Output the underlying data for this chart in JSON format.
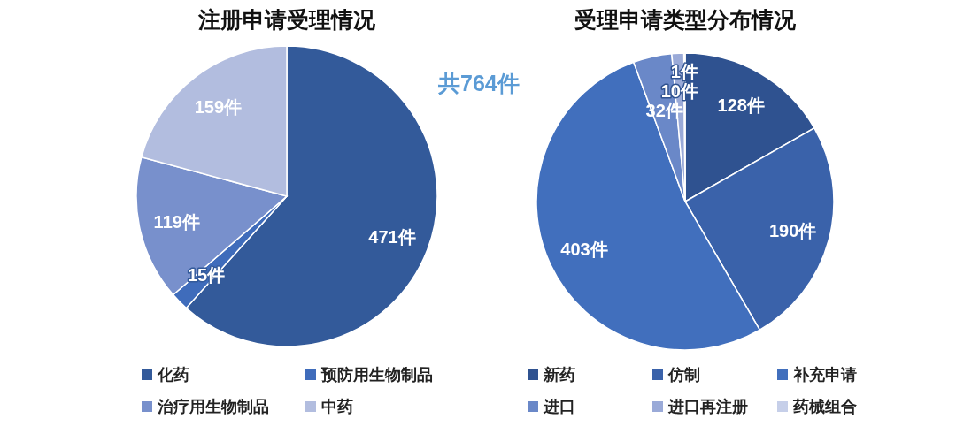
{
  "chart_data": [
    {
      "type": "pie",
      "title": "注册申请受理情况",
      "categories": [
        "化药",
        "预防用生物制品",
        "治疗用生物制品",
        "中药"
      ],
      "values": [
        471,
        15,
        119,
        159
      ],
      "colors": [
        "#335a9a",
        "#3f6cbb",
        "#7890cc",
        "#b2bddf"
      ],
      "value_labels": [
        "471件",
        "15件",
        "119件",
        "159件"
      ],
      "legend": "bottom",
      "annotations": [
        "共764件"
      ]
    },
    {
      "type": "pie",
      "title": "受理申请类型分布情况",
      "categories": [
        "新药",
        "仿制",
        "补充申请",
        "进口",
        "进口再注册",
        "药械组合"
      ],
      "values": [
        128,
        190,
        403,
        32,
        10,
        1
      ],
      "colors": [
        "#2f5290",
        "#3a62aa",
        "#416fbd",
        "#6a88c8",
        "#9aaad8",
        "#c6cfe9"
      ],
      "value_labels": [
        "128件",
        "190件",
        "403件",
        "32件",
        "10件",
        "1件"
      ],
      "legend": "bottom"
    }
  ]
}
